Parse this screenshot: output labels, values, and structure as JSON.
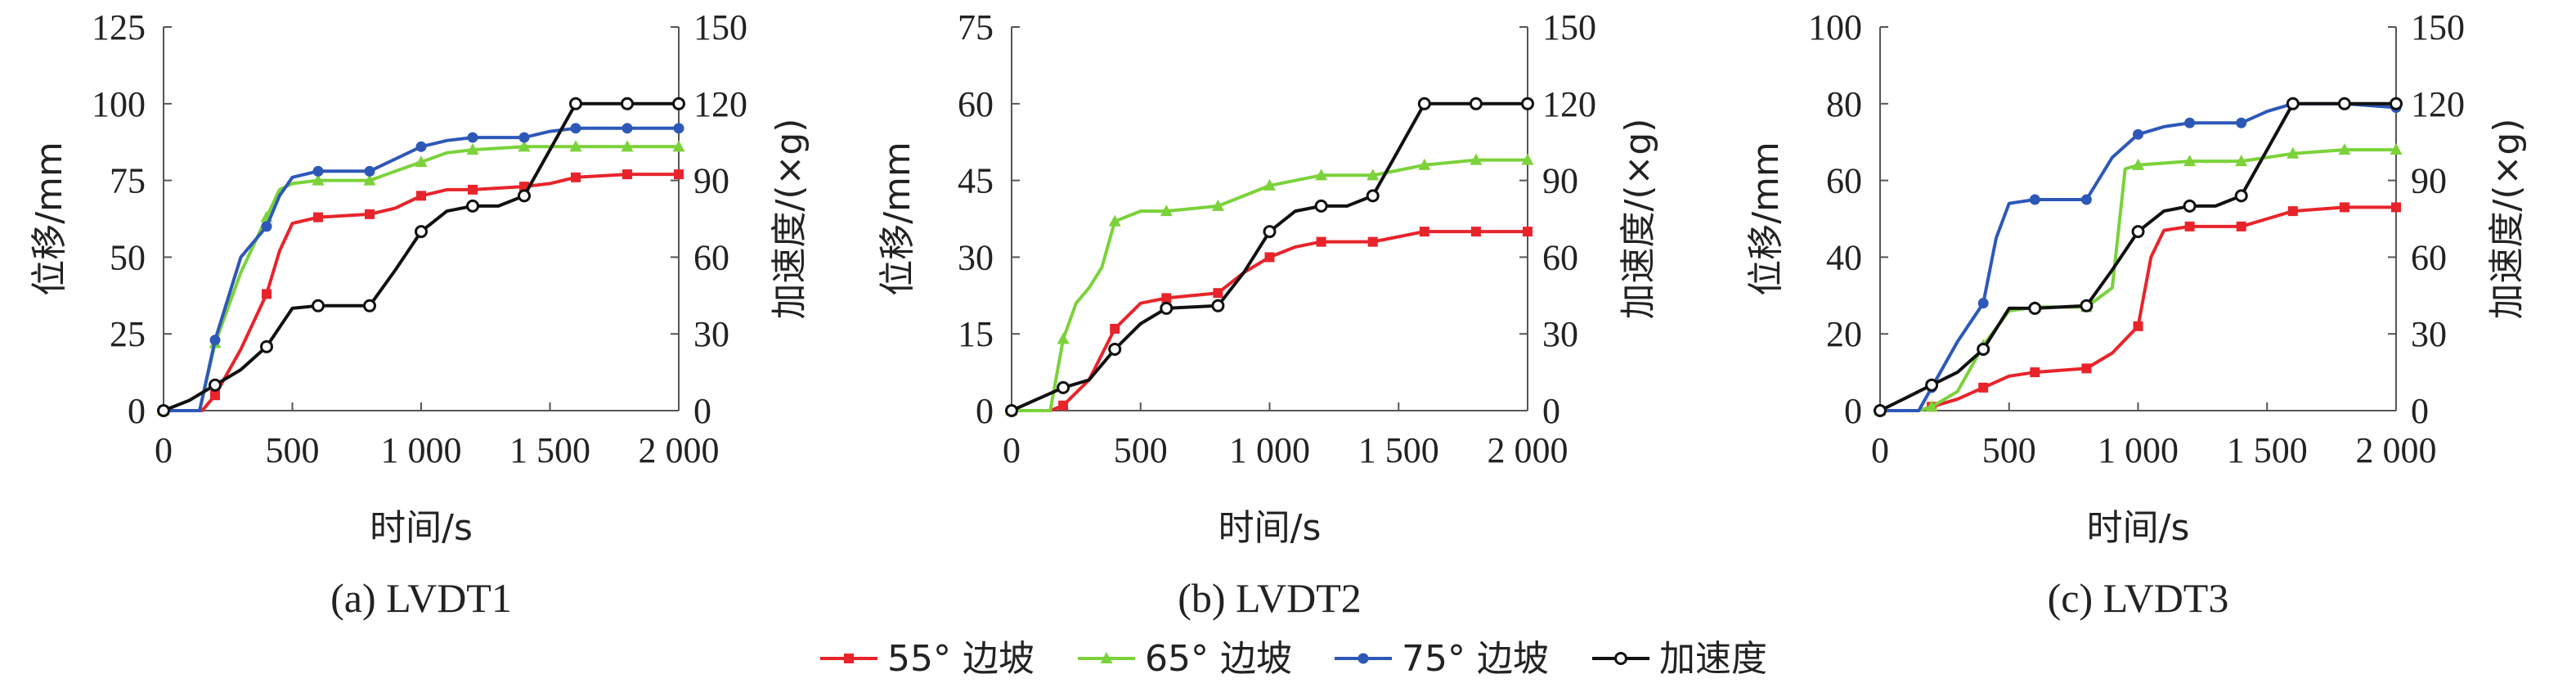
{
  "x_label": "时间/s",
  "y_left_label": "位移/mm",
  "y_right_label": "加速度/(×g)",
  "legend": [
    "55° 边坡",
    "65° 边坡",
    "75° 边坡",
    "加速度"
  ],
  "colors": {
    "s55": "#e8242b",
    "s65": "#7bd23a",
    "s75": "#2e58b8",
    "acc": "#111111"
  },
  "chart_data": [
    {
      "type": "line",
      "caption": "(a) LVDT1",
      "xlim": [
        0,
        2000
      ],
      "x_ticks": [
        0,
        500,
        1000,
        1500,
        2000
      ],
      "x_tick_labels": [
        "0",
        "500",
        "1 000",
        "1 500",
        "2 000"
      ],
      "ylim_left": [
        0,
        125
      ],
      "y_left_ticks": [
        0,
        25,
        50,
        75,
        100,
        125
      ],
      "ylim_right": [
        0,
        150
      ],
      "y_right_ticks": [
        0,
        30,
        60,
        90,
        120,
        150
      ],
      "series": [
        {
          "name": "55° 边坡",
          "axis": "left",
          "marker": "square",
          "points": [
            [
              0,
              0
            ],
            [
              150,
              0
            ],
            [
              200,
              5
            ],
            [
              300,
              20
            ],
            [
              400,
              38
            ],
            [
              450,
              52
            ],
            [
              500,
              61
            ],
            [
              600,
              63
            ],
            [
              800,
              64
            ],
            [
              900,
              66
            ],
            [
              1000,
              70
            ],
            [
              1100,
              72
            ],
            [
              1200,
              72
            ],
            [
              1400,
              73
            ],
            [
              1500,
              74
            ],
            [
              1600,
              76
            ],
            [
              1800,
              77
            ],
            [
              2000,
              77
            ]
          ]
        },
        {
          "name": "65° 边坡",
          "axis": "left",
          "marker": "triangle",
          "points": [
            [
              0,
              0
            ],
            [
              140,
              0
            ],
            [
              200,
              22
            ],
            [
              300,
              45
            ],
            [
              400,
              63
            ],
            [
              450,
              72
            ],
            [
              500,
              74
            ],
            [
              600,
              75
            ],
            [
              800,
              75
            ],
            [
              900,
              78
            ],
            [
              1000,
              81
            ],
            [
              1100,
              84
            ],
            [
              1200,
              85
            ],
            [
              1400,
              86
            ],
            [
              1500,
              86
            ],
            [
              1600,
              86
            ],
            [
              1800,
              86
            ],
            [
              2000,
              86
            ]
          ]
        },
        {
          "name": "75° 边坡",
          "axis": "left",
          "marker": "circle",
          "points": [
            [
              0,
              0
            ],
            [
              140,
              0
            ],
            [
              200,
              23
            ],
            [
              300,
              50
            ],
            [
              400,
              60
            ],
            [
              450,
              70
            ],
            [
              500,
              76
            ],
            [
              600,
              78
            ],
            [
              800,
              78
            ],
            [
              900,
              82
            ],
            [
              1000,
              86
            ],
            [
              1100,
              88
            ],
            [
              1200,
              89
            ],
            [
              1400,
              89
            ],
            [
              1500,
              91
            ],
            [
              1600,
              92
            ],
            [
              1800,
              92
            ],
            [
              2000,
              92
            ]
          ]
        },
        {
          "name": "加速度",
          "axis": "right",
          "marker": "circle-open",
          "points": [
            [
              0,
              0
            ],
            [
              100,
              4
            ],
            [
              200,
              10
            ],
            [
              300,
              16
            ],
            [
              400,
              25
            ],
            [
              500,
              40
            ],
            [
              600,
              41
            ],
            [
              800,
              41
            ],
            [
              900,
              55
            ],
            [
              1000,
              70
            ],
            [
              1100,
              78
            ],
            [
              1200,
              80
            ],
            [
              1300,
              80
            ],
            [
              1400,
              84
            ],
            [
              1500,
              102
            ],
            [
              1600,
              120
            ],
            [
              1800,
              120
            ],
            [
              2000,
              120
            ]
          ]
        }
      ]
    },
    {
      "type": "line",
      "caption": "(b) LVDT2",
      "xlim": [
        0,
        2000
      ],
      "x_ticks": [
        0,
        500,
        1000,
        1500,
        2000
      ],
      "x_tick_labels": [
        "0",
        "500",
        "1 000",
        "1 500",
        "2 000"
      ],
      "ylim_left": [
        0,
        75
      ],
      "y_left_ticks": [
        0,
        15,
        30,
        45,
        60,
        75
      ],
      "ylim_right": [
        0,
        150
      ],
      "y_right_ticks": [
        0,
        30,
        60,
        90,
        120,
        150
      ],
      "series": [
        {
          "name": "55° 边坡",
          "axis": "left",
          "marker": "square",
          "points": [
            [
              0,
              0
            ],
            [
              150,
              0
            ],
            [
              200,
              1
            ],
            [
              300,
              6
            ],
            [
              400,
              16
            ],
            [
              500,
              21
            ],
            [
              600,
              22
            ],
            [
              800,
              23
            ],
            [
              900,
              27
            ],
            [
              1000,
              30
            ],
            [
              1100,
              32
            ],
            [
              1200,
              33
            ],
            [
              1400,
              33
            ],
            [
              1500,
              34
            ],
            [
              1600,
              35
            ],
            [
              1800,
              35
            ],
            [
              2000,
              35
            ]
          ]
        },
        {
          "name": "65° 边坡",
          "axis": "left",
          "marker": "triangle",
          "points": [
            [
              0,
              0
            ],
            [
              150,
              0
            ],
            [
              200,
              14
            ],
            [
              250,
              21
            ],
            [
              300,
              24
            ],
            [
              350,
              28
            ],
            [
              400,
              37
            ],
            [
              500,
              39
            ],
            [
              600,
              39
            ],
            [
              800,
              40
            ],
            [
              900,
              42
            ],
            [
              1000,
              44
            ],
            [
              1100,
              45
            ],
            [
              1200,
              46
            ],
            [
              1400,
              46
            ],
            [
              1500,
              47
            ],
            [
              1600,
              48
            ],
            [
              1800,
              49
            ],
            [
              2000,
              49
            ]
          ]
        },
        {
          "name": "加速度",
          "axis": "right",
          "marker": "circle-open",
          "points": [
            [
              0,
              0
            ],
            [
              200,
              9
            ],
            [
              300,
              12
            ],
            [
              400,
              24
            ],
            [
              500,
              34
            ],
            [
              600,
              40
            ],
            [
              800,
              41
            ],
            [
              900,
              54
            ],
            [
              1000,
              70
            ],
            [
              1100,
              78
            ],
            [
              1200,
              80
            ],
            [
              1300,
              80
            ],
            [
              1400,
              84
            ],
            [
              1500,
              102
            ],
            [
              1600,
              120
            ],
            [
              1800,
              120
            ],
            [
              2000,
              120
            ]
          ]
        }
      ]
    },
    {
      "type": "line",
      "caption": "(c) LVDT3",
      "xlim": [
        0,
        2000
      ],
      "x_ticks": [
        0,
        500,
        1000,
        1500,
        2000
      ],
      "x_tick_labels": [
        "0",
        "500",
        "1 000",
        "1 500",
        "2 000"
      ],
      "ylim_left": [
        0,
        100
      ],
      "y_left_ticks": [
        0,
        20,
        40,
        60,
        80,
        100
      ],
      "ylim_right": [
        0,
        150
      ],
      "y_right_ticks": [
        0,
        30,
        60,
        90,
        120,
        150
      ],
      "series": [
        {
          "name": "55° 边坡",
          "axis": "left",
          "marker": "square",
          "points": [
            [
              0,
              0
            ],
            [
              150,
              0
            ],
            [
              200,
              1
            ],
            [
              300,
              3
            ],
            [
              400,
              6
            ],
            [
              500,
              9
            ],
            [
              600,
              10
            ],
            [
              800,
              11
            ],
            [
              900,
              15
            ],
            [
              1000,
              22
            ],
            [
              1050,
              40
            ],
            [
              1100,
              47
            ],
            [
              1200,
              48
            ],
            [
              1400,
              48
            ],
            [
              1500,
              50
            ],
            [
              1600,
              52
            ],
            [
              1800,
              53
            ],
            [
              2000,
              53
            ]
          ]
        },
        {
          "name": "65° 边坡",
          "axis": "left",
          "marker": "triangle",
          "points": [
            [
              0,
              0
            ],
            [
              150,
              0
            ],
            [
              200,
              1
            ],
            [
              300,
              5
            ],
            [
              400,
              17
            ],
            [
              500,
              26
            ],
            [
              600,
              27
            ],
            [
              800,
              27
            ],
            [
              900,
              32
            ],
            [
              950,
              63
            ],
            [
              1000,
              64
            ],
            [
              1200,
              65
            ],
            [
              1400,
              65
            ],
            [
              1600,
              67
            ],
            [
              1800,
              68
            ],
            [
              2000,
              68
            ]
          ]
        },
        {
          "name": "75° 边坡",
          "axis": "left",
          "marker": "circle",
          "points": [
            [
              0,
              0
            ],
            [
              150,
              0
            ],
            [
              300,
              18
            ],
            [
              400,
              28
            ],
            [
              450,
              45
            ],
            [
              500,
              54
            ],
            [
              600,
              55
            ],
            [
              800,
              55
            ],
            [
              900,
              66
            ],
            [
              1000,
              72
            ],
            [
              1100,
              74
            ],
            [
              1200,
              75
            ],
            [
              1400,
              75
            ],
            [
              1500,
              78
            ],
            [
              1600,
              80
            ],
            [
              1800,
              80
            ],
            [
              2000,
              79
            ]
          ]
        },
        {
          "name": "加速度",
          "axis": "right",
          "marker": "circle-open",
          "points": [
            [
              0,
              0
            ],
            [
              100,
              5
            ],
            [
              200,
              10
            ],
            [
              300,
              15
            ],
            [
              400,
              24
            ],
            [
              500,
              40
            ],
            [
              600,
              40
            ],
            [
              800,
              41
            ],
            [
              900,
              55
            ],
            [
              1000,
              70
            ],
            [
              1100,
              78
            ],
            [
              1200,
              80
            ],
            [
              1300,
              80
            ],
            [
              1400,
              84
            ],
            [
              1500,
              102
            ],
            [
              1600,
              120
            ],
            [
              1800,
              120
            ],
            [
              2000,
              120
            ]
          ]
        }
      ]
    }
  ]
}
